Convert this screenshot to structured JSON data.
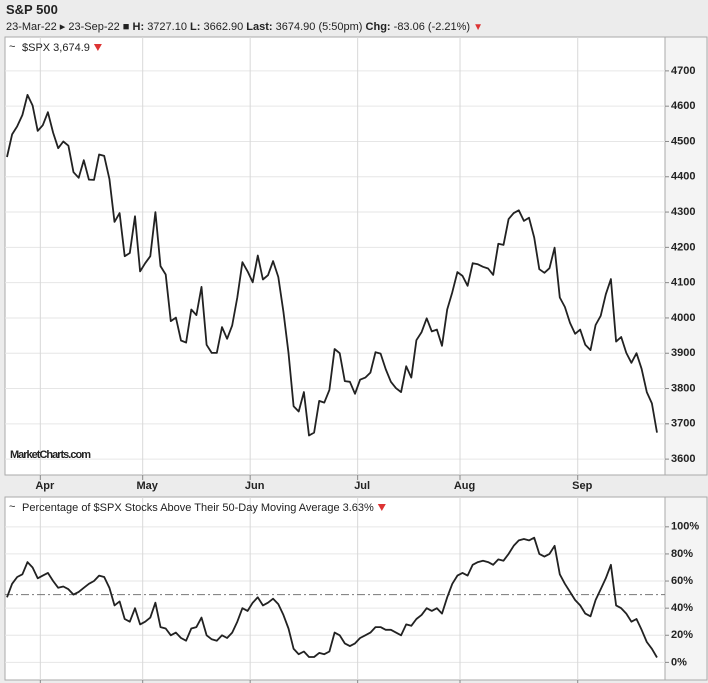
{
  "header": {
    "title": "S&P 500",
    "date_range": "23-Mar-22 ▸ 23-Sep-22 ■",
    "stats": [
      {
        "label": "H:",
        "value": "3727.10"
      },
      {
        "label": "L:",
        "value": "3662.90"
      },
      {
        "label": "Last:",
        "value": "3674.90 (5:50pm)"
      },
      {
        "label": "Chg:",
        "value": "-83.06 (-2.21%)"
      }
    ]
  },
  "watermark": "MarketCharts.com",
  "chart_data": [
    {
      "type": "line",
      "title": "$SPX 3,674.9",
      "color": "#222222",
      "grid": true,
      "categories": [
        null,
        null,
        null,
        null,
        null,
        null,
        null,
        "Apr",
        null,
        null,
        null,
        null,
        null,
        null,
        null,
        null,
        null,
        null,
        null,
        null,
        null,
        null,
        null,
        null,
        null,
        null,
        null,
        "May",
        null,
        null,
        null,
        null,
        null,
        null,
        null,
        null,
        null,
        null,
        null,
        null,
        null,
        null,
        null,
        null,
        null,
        null,
        null,
        null,
        "Jun",
        null,
        null,
        null,
        null,
        null,
        null,
        null,
        null,
        null,
        null,
        null,
        null,
        null,
        null,
        null,
        null,
        null,
        null,
        null,
        null,
        "Jul",
        null,
        null,
        null,
        null,
        null,
        null,
        null,
        null,
        null,
        null,
        null,
        null,
        null,
        null,
        null,
        null,
        null,
        null,
        null,
        "Aug",
        null,
        null,
        null,
        null,
        null,
        null,
        null,
        null,
        null,
        null,
        null,
        null,
        null,
        null,
        null,
        null,
        null,
        null,
        null,
        null,
        null,
        null,
        "Sep",
        null,
        null,
        null,
        null,
        null,
        null,
        null,
        null,
        null,
        null,
        null,
        null,
        null,
        null,
        null
      ],
      "values": [
        4456,
        4520,
        4543,
        4575,
        4632,
        4602,
        4530,
        4546,
        4583,
        4525,
        4481,
        4500,
        4488,
        4413,
        4397,
        4447,
        4392,
        4391,
        4463,
        4459,
        4394,
        4272,
        4297,
        4175,
        4184,
        4288,
        4132,
        4155,
        4175,
        4300,
        4147,
        4123,
        3991,
        4001,
        3936,
        3930,
        4024,
        4008,
        4088,
        3924,
        3901,
        3901,
        3974,
        3941,
        3979,
        4058,
        4158,
        4132,
        4101,
        4177,
        4109,
        4121,
        4161,
        4116,
        4018,
        3901,
        3750,
        3735,
        3790,
        3667,
        3675,
        3765,
        3760,
        3796,
        3912,
        3900,
        3821,
        3819,
        3785,
        3825,
        3831,
        3845,
        3903,
        3899,
        3855,
        3819,
        3801,
        3790,
        3863,
        3831,
        3937,
        3960,
        3999,
        3962,
        3967,
        3921,
        4024,
        4073,
        4130,
        4119,
        4091,
        4155,
        4152,
        4145,
        4140,
        4122,
        4210,
        4207,
        4280,
        4297,
        4305,
        4275,
        4284,
        4228,
        4138,
        4128,
        4141,
        4199,
        4058,
        4031,
        3986,
        3955,
        3967,
        3924,
        3909,
        3980,
        4006,
        4067,
        4110,
        3933,
        3946,
        3901,
        3873,
        3900,
        3856,
        3790,
        3758,
        3675
      ],
      "ylim": [
        3555,
        4796
      ],
      "yticks": [
        3600,
        3700,
        3800,
        3900,
        4000,
        4100,
        4200,
        4300,
        4400,
        4500,
        4600,
        4700
      ]
    },
    {
      "type": "line",
      "title": "Percentage of $SPX Stocks Above Their 50-Day Moving Average 3.63%",
      "color": "#222222",
      "grid": true,
      "values": [
        48,
        58,
        63,
        65,
        74,
        70,
        62,
        64,
        66,
        60,
        55,
        56,
        54,
        50,
        52,
        55,
        58,
        60,
        64,
        63,
        55,
        42,
        45,
        32,
        30,
        40,
        28,
        30,
        33,
        44,
        26,
        25,
        20,
        22,
        18,
        16,
        25,
        26,
        33,
        20,
        17,
        16,
        20,
        18,
        22,
        30,
        40,
        38,
        44,
        48,
        42,
        44,
        47,
        43,
        35,
        25,
        10,
        6,
        8,
        4,
        4,
        7,
        6,
        8,
        22,
        20,
        14,
        12,
        14,
        18,
        20,
        22,
        26,
        26,
        24,
        24,
        22,
        20,
        28,
        27,
        32,
        35,
        40,
        38,
        40,
        36,
        48,
        58,
        64,
        66,
        64,
        72,
        74,
        75,
        74,
        72,
        76,
        75,
        80,
        86,
        90,
        91,
        90,
        92,
        80,
        78,
        80,
        86,
        65,
        58,
        52,
        46,
        42,
        36,
        34,
        46,
        54,
        62,
        72,
        42,
        40,
        36,
        30,
        32,
        24,
        15,
        10,
        3.63
      ],
      "reference_line": 50,
      "ylim": [
        -13,
        122
      ],
      "yticks": [
        {
          "value": 0,
          "label": "0%"
        },
        {
          "value": 20,
          "label": "20%"
        },
        {
          "value": 40,
          "label": "40%"
        },
        {
          "value": 60,
          "label": "60%"
        },
        {
          "value": 80,
          "label": "80%"
        },
        {
          "value": 100,
          "label": "100%"
        }
      ]
    }
  ]
}
